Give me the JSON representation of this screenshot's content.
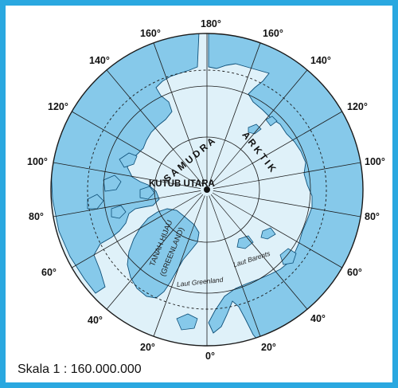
{
  "map": {
    "pole_label": "KUTUB UTARA",
    "ocean_label_1": "SAMUDRA",
    "ocean_label_2": "ARKTIK",
    "greenland_label_1": "TANAH HIJAU",
    "greenland_label_2": "(GREENLAND)",
    "sea_label_greenland": "Laut Greenland",
    "sea_label_barents": "Laut Barents",
    "scale_text": "Skala 1 : 160.000.000",
    "longitude_labels": {
      "top": "180°",
      "top_left_160": "160°",
      "top_right_160": "160°",
      "left_140": "140°",
      "right_140": "140°",
      "left_120": "120°",
      "right_120": "120°",
      "left_100": "100°",
      "right_100": "100°",
      "left_80": "80°",
      "right_80": "80°",
      "left_60": "60°",
      "right_60": "60°",
      "left_40": "40°",
      "right_40": "40°",
      "left_20": "20°",
      "right_20": "20°",
      "bottom": "0°"
    },
    "colors": {
      "frame": "#2aa8e0",
      "ocean": "#dff1f9",
      "land": "#86c9ea",
      "outline": "#0d4f78",
      "grid": "#1a1a1a"
    }
  }
}
